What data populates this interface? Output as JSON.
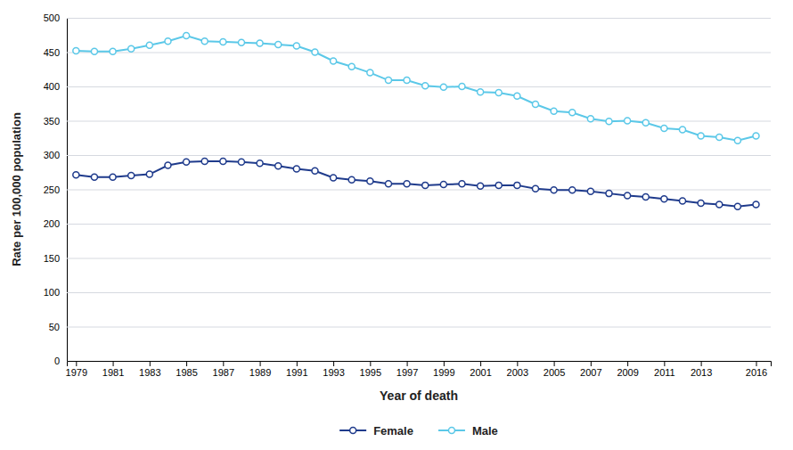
{
  "chart_data": {
    "type": "line",
    "xlabel": "Year of death",
    "ylabel": "Rate per 100,000 population",
    "x": [
      1979,
      1980,
      1981,
      1982,
      1983,
      1984,
      1985,
      1986,
      1987,
      1988,
      1989,
      1990,
      1991,
      1992,
      1993,
      1994,
      1995,
      1996,
      1997,
      1998,
      1999,
      2000,
      2001,
      2002,
      2003,
      2004,
      2005,
      2006,
      2007,
      2008,
      2009,
      2010,
      2011,
      2012,
      2013,
      2014,
      2015,
      2016
    ],
    "series": [
      {
        "name": "Female",
        "color": "#1f3b8c",
        "marker": "circle",
        "values": [
          271,
          268,
          268,
          270,
          272,
          285,
          290,
          291,
          291,
          290,
          288,
          284,
          280,
          277,
          267,
          264,
          262,
          258,
          258,
          256,
          257,
          258,
          255,
          256,
          256,
          251,
          249,
          249,
          247,
          244,
          241,
          239,
          236,
          233,
          230,
          228,
          225,
          228
        ]
      },
      {
        "name": "Male",
        "color": "#5bc8e8",
        "marker": "circle",
        "values": [
          452,
          451,
          451,
          455,
          460,
          466,
          474,
          466,
          465,
          464,
          463,
          461,
          459,
          450,
          437,
          429,
          420,
          409,
          409,
          401,
          399,
          400,
          392,
          391,
          386,
          374,
          364,
          362,
          353,
          349,
          350,
          347,
          339,
          337,
          328,
          326,
          321,
          328
        ]
      }
    ],
    "xlim": [
      1978.5,
      2016.8
    ],
    "xticks": [
      1979,
      1981,
      1983,
      1985,
      1987,
      1989,
      1991,
      1993,
      1995,
      1997,
      1999,
      2001,
      2003,
      2005,
      2007,
      2009,
      2011,
      2013,
      2016
    ],
    "ylim": [
      0,
      500
    ],
    "yticks": [
      0,
      50,
      100,
      150,
      200,
      250,
      300,
      350,
      400,
      450,
      500
    ],
    "grid": "y",
    "legend": "bottom"
  }
}
